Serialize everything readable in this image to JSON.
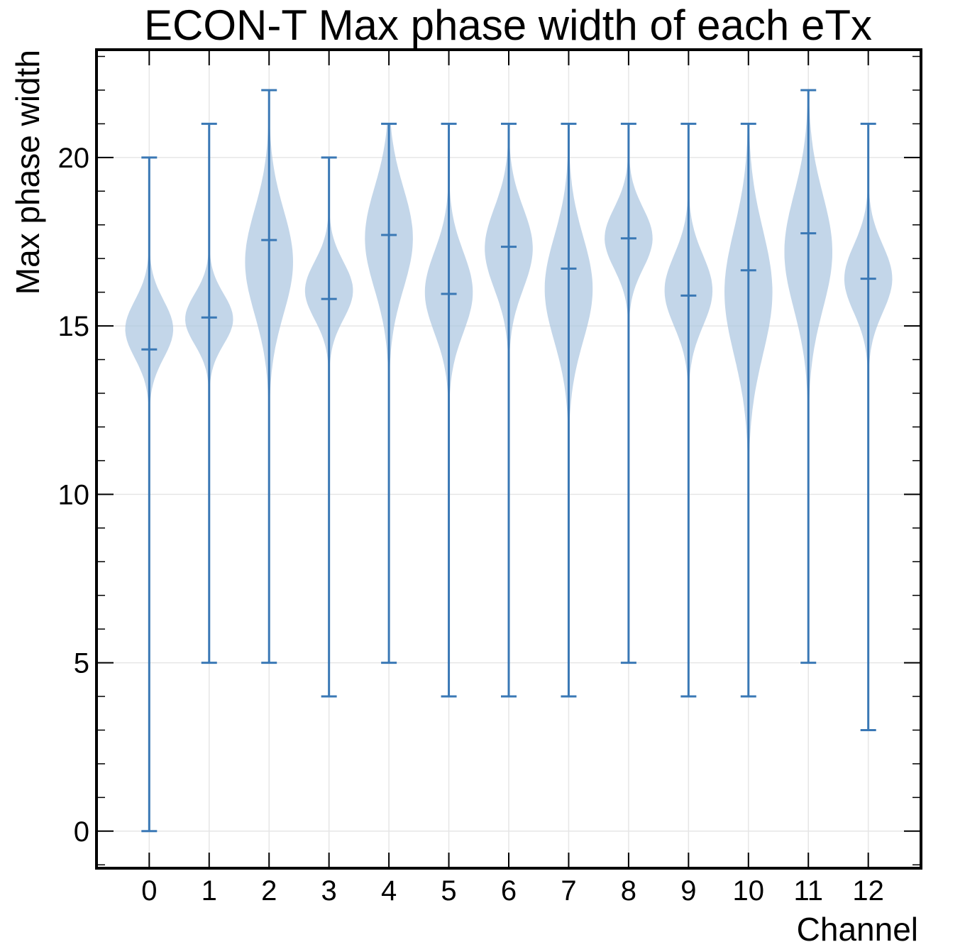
{
  "chart_data": {
    "type": "violin",
    "title": "ECON-T Max phase width of each eTx",
    "xlabel": "Channel",
    "ylabel": "Max phase width",
    "ylim": [
      -1.1,
      23.2
    ],
    "xlim": [
      -0.88,
      12.88
    ],
    "yticks": [
      0,
      5,
      10,
      15,
      20
    ],
    "grid": true,
    "legend": "none",
    "colors": {
      "body": "#a9c4df",
      "line": "#3a78b5",
      "grid": "#e6e6e6",
      "axis": "#000000"
    },
    "categories": [
      "0",
      "1",
      "2",
      "3",
      "4",
      "5",
      "6",
      "7",
      "8",
      "9",
      "10",
      "11",
      "12"
    ],
    "min": [
      0,
      5,
      5,
      4,
      5,
      4,
      4,
      4,
      5,
      4,
      4,
      5,
      3
    ],
    "max": [
      20,
      21,
      22,
      20,
      21,
      21,
      21,
      21,
      21,
      21,
      21,
      22,
      21
    ],
    "means": [
      14.3,
      15.25,
      17.55,
      15.8,
      17.7,
      15.95,
      17.35,
      16.7,
      17.6,
      15.9,
      16.65,
      17.75,
      16.4
    ],
    "modes": [
      14.9,
      15.2,
      16.9,
      16.05,
      17.6,
      16.0,
      17.3,
      16.1,
      17.6,
      16.05,
      16.0,
      17.2,
      16.4
    ],
    "spread": [
      0.85,
      0.75,
      1.55,
      0.85,
      1.5,
      1.2,
      1.2,
      1.55,
      0.9,
      1.05,
      1.85,
      1.7,
      1.0
    ]
  }
}
